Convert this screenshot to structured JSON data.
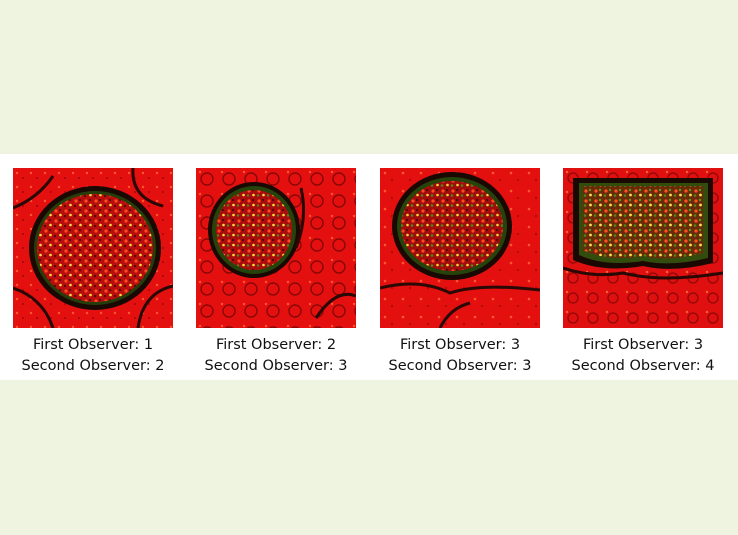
{
  "panels": [
    {
      "first": "First Observer: 1",
      "second": "Second Observer: 2"
    },
    {
      "first": "First Observer: 2",
      "second": "Second Observer: 3"
    },
    {
      "first": "First Observer: 3",
      "second": "Second Observer: 3"
    },
    {
      "first": "First Observer: 3",
      "second": "Second Observer: 4"
    }
  ],
  "colors": {
    "background": "#eef4df",
    "strip": "#ffffff",
    "tissue_red": "#e41010",
    "tissue_dark": "#1a0803",
    "stain_green": "#3d6a12"
  },
  "image_content": [
    "fluorescence-micrograph-glomerulus-1",
    "fluorescence-micrograph-glomerulus-2",
    "fluorescence-micrograph-glomerulus-3",
    "fluorescence-micrograph-glomerulus-4"
  ]
}
